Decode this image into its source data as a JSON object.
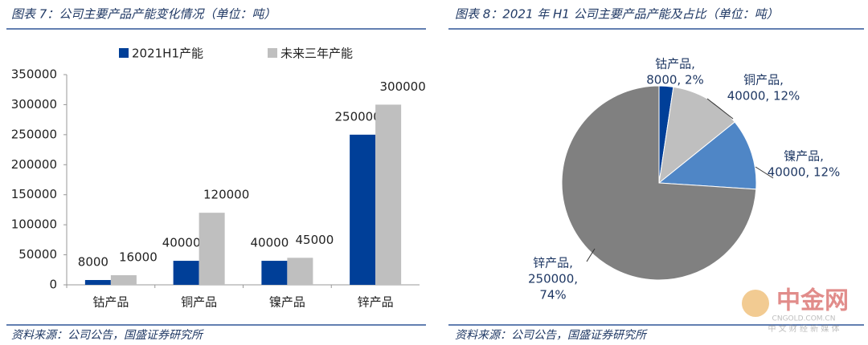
{
  "chart_data": [
    {
      "type": "bar",
      "title": "图表 7：公司主要产品产能变化情况（单位：吨）",
      "categories": [
        "钴产品",
        "铜产品",
        "镍产品",
        "锌产品"
      ],
      "series": [
        {
          "name": "2021H1产能",
          "color": "#003f98",
          "values": [
            8000,
            40000,
            40000,
            250000
          ]
        },
        {
          "name": "未来三年产能",
          "color": "#bfbfbf",
          "values": [
            16000,
            120000,
            45000,
            300000
          ]
        }
      ],
      "ylim": [
        0,
        350000
      ],
      "yticks": [
        0,
        50000,
        100000,
        150000,
        200000,
        250000,
        300000,
        350000
      ],
      "legend": "top",
      "source": "资料来源：公司公告，国盛证券研究所"
    },
    {
      "type": "pie",
      "title": "图表 8：2021 年 H1 公司主要产品产能及占比（单位：吨）",
      "categories": [
        "钴产品",
        "铜产品",
        "镍产品",
        "锌产品"
      ],
      "values": [
        8000,
        40000,
        40000,
        250000
      ],
      "colors": [
        "#003f98",
        "#bfbfbf",
        "#4f86c6",
        "#808080"
      ],
      "value_labels": [
        [
          "钴产品,",
          "8000, 2%"
        ],
        [
          "铜产品,",
          "40000, 12%"
        ],
        [
          "镍产品,",
          "40000, 12%"
        ],
        [
          "锌产品,",
          "250000,",
          "74%"
        ]
      ],
      "source": "资料来源：公司公告，国盛证券研究所"
    }
  ],
  "watermark": {
    "brand": "中金网",
    "domain": "CNGOLD.COM.CN",
    "tagline": "中 文 财 经 新 媒 体"
  }
}
